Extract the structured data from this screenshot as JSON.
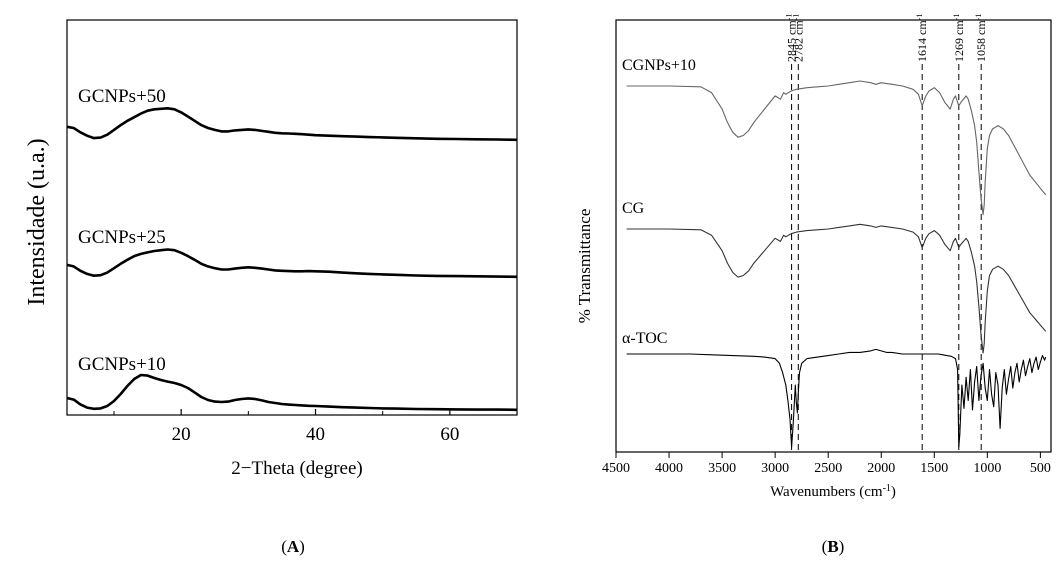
{
  "panel_a": {
    "label": "A",
    "chart_data": {
      "type": "line",
      "title": "",
      "xlabel": "2−Theta (degree)",
      "ylabel": "Intensidade (u.a.)",
      "xlim": [
        3,
        70
      ],
      "xticks": [
        20,
        40,
        60
      ],
      "xticks_minor": [
        10,
        30,
        50,
        70
      ],
      "y_ticks_shown": false,
      "grid": false,
      "legend": "none; series labeled inline above each trace",
      "series": [
        {
          "name": "GCNPs+50",
          "color": "#000000",
          "x": [
            3,
            4,
            5,
            6,
            7,
            8,
            9,
            10,
            11,
            12,
            13,
            14,
            15,
            16,
            17,
            18,
            19,
            20,
            21,
            22,
            23,
            24,
            25,
            26,
            27,
            28,
            29,
            30,
            31,
            32,
            33,
            34,
            35,
            36,
            37,
            38,
            39,
            40,
            42,
            44,
            46,
            48,
            50,
            52,
            55,
            58,
            61,
            64,
            67,
            70
          ],
          "y": [
            0.55,
            0.5,
            0.32,
            0.18,
            0.08,
            0.1,
            0.22,
            0.42,
            0.62,
            0.8,
            0.95,
            1.1,
            1.22,
            1.28,
            1.3,
            1.32,
            1.28,
            1.15,
            0.98,
            0.8,
            0.62,
            0.5,
            0.42,
            0.36,
            0.36,
            0.4,
            0.42,
            0.44,
            0.42,
            0.38,
            0.34,
            0.3,
            0.28,
            0.27,
            0.26,
            0.24,
            0.22,
            0.2,
            0.18,
            0.16,
            0.14,
            0.12,
            0.11,
            0.09,
            0.07,
            0.05,
            0.04,
            0.03,
            0.02,
            0.01
          ]
        },
        {
          "name": "GCNPs+25",
          "color": "#000000",
          "x": [
            3,
            4,
            5,
            6,
            7,
            8,
            9,
            10,
            11,
            12,
            13,
            14,
            15,
            16,
            17,
            18,
            19,
            20,
            21,
            22,
            23,
            24,
            25,
            26,
            27,
            28,
            29,
            30,
            31,
            32,
            33,
            34,
            35,
            36,
            37,
            38,
            39,
            40,
            42,
            44,
            46,
            48,
            50,
            52,
            55,
            58,
            61,
            64,
            67,
            70
          ],
          "y": [
            0.55,
            0.48,
            0.28,
            0.14,
            0.06,
            0.08,
            0.2,
            0.4,
            0.6,
            0.78,
            0.95,
            1.05,
            1.12,
            1.18,
            1.22,
            1.25,
            1.22,
            1.1,
            0.95,
            0.78,
            0.6,
            0.48,
            0.4,
            0.34,
            0.34,
            0.38,
            0.42,
            0.44,
            0.42,
            0.38,
            0.34,
            0.3,
            0.28,
            0.27,
            0.26,
            0.26,
            0.27,
            0.26,
            0.24,
            0.2,
            0.17,
            0.14,
            0.12,
            0.1,
            0.07,
            0.05,
            0.04,
            0.03,
            0.02,
            0.01
          ]
        },
        {
          "name": "GCNPs+10",
          "color": "#000000",
          "x": [
            3,
            4,
            5,
            6,
            7,
            8,
            9,
            10,
            11,
            12,
            13,
            14,
            15,
            16,
            17,
            18,
            19,
            20,
            21,
            22,
            23,
            24,
            25,
            26,
            27,
            28,
            29,
            30,
            31,
            32,
            33,
            34,
            35,
            36,
            37,
            38,
            39,
            40,
            42,
            44,
            46,
            48,
            50,
            52,
            55,
            58,
            61,
            64,
            67,
            70
          ],
          "y": [
            0.6,
            0.52,
            0.28,
            0.12,
            0.06,
            0.08,
            0.2,
            0.45,
            0.8,
            1.2,
            1.55,
            1.75,
            1.72,
            1.6,
            1.5,
            1.42,
            1.35,
            1.25,
            1.1,
            0.88,
            0.65,
            0.5,
            0.42,
            0.4,
            0.42,
            0.5,
            0.55,
            0.58,
            0.55,
            0.48,
            0.4,
            0.35,
            0.3,
            0.27,
            0.25,
            0.23,
            0.21,
            0.2,
            0.17,
            0.14,
            0.12,
            0.1,
            0.08,
            0.07,
            0.05,
            0.04,
            0.03,
            0.02,
            0.02,
            0.01
          ]
        }
      ]
    }
  },
  "panel_b": {
    "label": "B",
    "chart_data": {
      "type": "line",
      "title": "",
      "xlabel": "Wavenumbers (cm",
      "xlabel_sup": "-1",
      "xlabel_end": ")",
      "ylabel": "% Transmittance",
      "xlim": [
        4500,
        400
      ],
      "x_reversed": true,
      "xticks": [
        4500,
        4000,
        3500,
        3000,
        2500,
        2000,
        1500,
        1000,
        500
      ],
      "y_ticks_shown": false,
      "grid": false,
      "legend": "none; series labeled inline above each trace",
      "annotations": [
        {
          "x": 2845,
          "text": "2845 cm",
          "sup": "-1"
        },
        {
          "x": 2782,
          "text": "2782 cm",
          "sup": "-1"
        },
        {
          "x": 1614,
          "text": "1614 cm",
          "sup": "-1"
        },
        {
          "x": 1269,
          "text": "1269 cm",
          "sup": "-1"
        },
        {
          "x": 1058,
          "text": "1058 cm",
          "sup": "-1"
        }
      ],
      "series": [
        {
          "name": "CGNPs+10",
          "color": "#666666",
          "x": [
            4400,
            4000,
            3700,
            3600,
            3500,
            3450,
            3400,
            3350,
            3300,
            3250,
            3200,
            3100,
            3000,
            2950,
            2920,
            2900,
            2850,
            2800,
            2700,
            2600,
            2500,
            2400,
            2300,
            2200,
            2100,
            2050,
            2000,
            1900,
            1800,
            1700,
            1650,
            1614,
            1580,
            1550,
            1500,
            1450,
            1400,
            1350,
            1320,
            1300,
            1269,
            1250,
            1200,
            1180,
            1150,
            1120,
            1100,
            1080,
            1060,
            1040,
            1030,
            1020,
            1000,
            980,
            950,
            900,
            850,
            800,
            750,
            700,
            650,
            600,
            550,
            500,
            450
          ],
          "y": [
            0,
            0,
            0.5,
            4,
            14,
            22,
            28,
            31,
            30,
            27,
            22,
            14,
            6,
            8,
            4,
            5,
            3,
            2,
            1,
            0.5,
            0,
            -1,
            -2,
            -3,
            -2,
            -1,
            -2,
            -1,
            0,
            2,
            5,
            12,
            6,
            3,
            1,
            4,
            10,
            14,
            8,
            6,
            12,
            10,
            6,
            8,
            15,
            24,
            34,
            52,
            68,
            78,
            72,
            58,
            38,
            30,
            26,
            24,
            26,
            30,
            36,
            42,
            48,
            54,
            58,
            62,
            66
          ]
        },
        {
          "name": "CG",
          "color": "#333333",
          "x": [
            4400,
            4000,
            3700,
            3600,
            3500,
            3450,
            3400,
            3350,
            3300,
            3250,
            3200,
            3100,
            3000,
            2950,
            2920,
            2900,
            2850,
            2800,
            2700,
            2600,
            2500,
            2400,
            2300,
            2200,
            2100,
            2050,
            2000,
            1900,
            1800,
            1700,
            1650,
            1614,
            1580,
            1550,
            1500,
            1450,
            1400,
            1350,
            1320,
            1300,
            1269,
            1250,
            1200,
            1180,
            1150,
            1120,
            1100,
            1080,
            1060,
            1040,
            1030,
            1020,
            1000,
            980,
            950,
            900,
            850,
            800,
            750,
            700,
            650,
            600,
            550,
            500,
            450
          ],
          "y": [
            0,
            0,
            0.5,
            4,
            14,
            22,
            28,
            31,
            30,
            27,
            22,
            14,
            6,
            8,
            4,
            5,
            3,
            2,
            1,
            0.5,
            0,
            -1,
            -2,
            -3,
            -2,
            -1,
            -2,
            -1,
            0,
            2,
            5,
            12,
            6,
            3,
            1,
            4,
            10,
            14,
            8,
            6,
            12,
            10,
            6,
            8,
            15,
            24,
            34,
            50,
            68,
            80,
            74,
            60,
            40,
            30,
            26,
            24,
            26,
            30,
            36,
            42,
            48,
            54,
            58,
            62,
            66
          ]
        },
        {
          "name": "α-TOC",
          "color": "#000000",
          "x": [
            4400,
            4200,
            4000,
            3800,
            3600,
            3400,
            3200,
            3100,
            3000,
            2960,
            2930,
            2900,
            2880,
            2860,
            2845,
            2830,
            2810,
            2800,
            2790,
            2782,
            2770,
            2750,
            2700,
            2600,
            2500,
            2400,
            2300,
            2200,
            2100,
            2050,
            2000,
            1950,
            1900,
            1800,
            1700,
            1650,
            1614,
            1580,
            1500,
            1460,
            1420,
            1380,
            1340,
            1300,
            1280,
            1269,
            1260,
            1240,
            1220,
            1200,
            1180,
            1160,
            1140,
            1120,
            1100,
            1080,
            1060,
            1040,
            1020,
            1000,
            980,
            960,
            940,
            920,
            900,
            880,
            860,
            840,
            820,
            800,
            780,
            760,
            740,
            720,
            700,
            680,
            660,
            640,
            620,
            600,
            580,
            560,
            540,
            520,
            500,
            480,
            460,
            450
          ],
          "y": [
            0,
            0,
            0,
            0,
            0.5,
            1,
            1.5,
            2,
            3,
            6,
            12,
            20,
            30,
            42,
            60,
            45,
            20,
            32,
            38,
            25,
            12,
            6,
            3,
            2,
            1,
            0,
            -1,
            -1,
            -2,
            -3,
            -2,
            -1,
            -1,
            0,
            0,
            0,
            0,
            0,
            0,
            0,
            0.5,
            1,
            1.5,
            3,
            10,
            60,
            52,
            20,
            35,
            15,
            30,
            10,
            36,
            18,
            8,
            30,
            14,
            6,
            22,
            30,
            10,
            26,
            34,
            12,
            20,
            48,
            22,
            10,
            26,
            16,
            8,
            22,
            12,
            6,
            18,
            10,
            4,
            14,
            8,
            3,
            12,
            6,
            2,
            10,
            5,
            1,
            4,
            2
          ]
        }
      ]
    }
  }
}
